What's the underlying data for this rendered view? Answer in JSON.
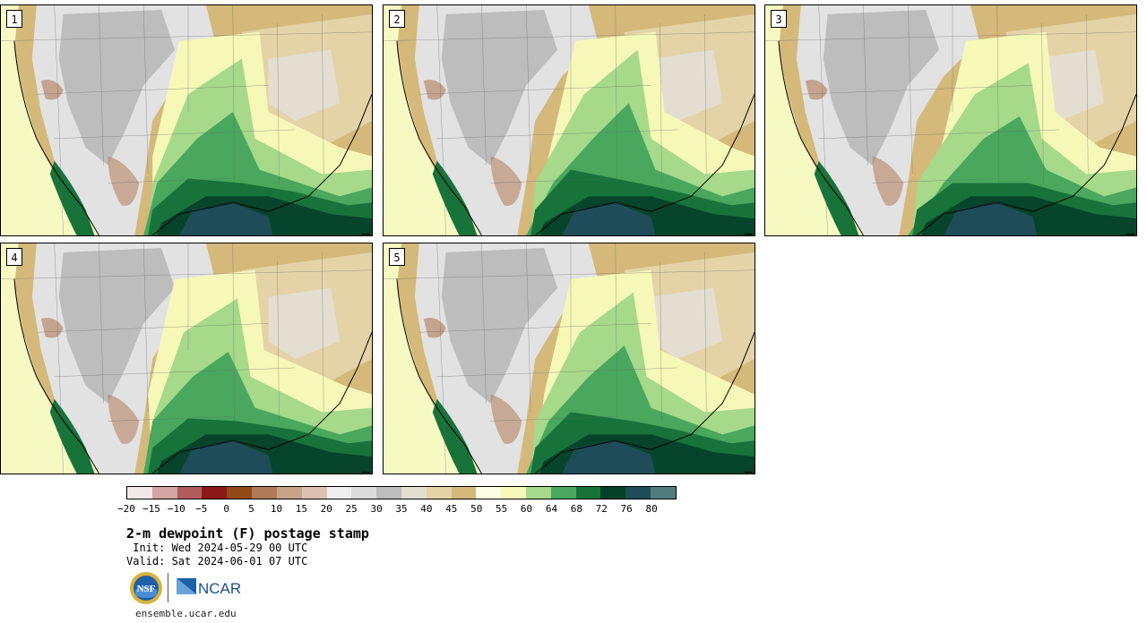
{
  "panels": [
    {
      "label": "1"
    },
    {
      "label": "2"
    },
    {
      "label": "3"
    },
    {
      "label": "4"
    },
    {
      "label": "5"
    }
  ],
  "colorbar": {
    "colors": [
      "#f2e8e8",
      "#d4a3a3",
      "#b15c5c",
      "#8c1919",
      "#8f4a16",
      "#b07a58",
      "#c8a489",
      "#dcc1b3",
      "#eeeeee",
      "#dcdcdc",
      "#bdbdbd",
      "#e2dfcf",
      "#e4d3a6",
      "#d4b97a",
      "#fffce5",
      "#f6f8b8",
      "#a6d98a",
      "#49a75e",
      "#177339",
      "#05412a",
      "#1f4e5a",
      "#527d7d"
    ],
    "tick_labels": [
      "−20",
      "−15",
      "−10",
      "−5",
      "0",
      "5",
      "10",
      "15",
      "20",
      "25",
      "30",
      "35",
      "40",
      "45",
      "50",
      "55",
      "60",
      "64",
      "68",
      "72",
      "76",
      "80"
    ]
  },
  "title": "2-m dewpoint (F) postage stamp",
  "init": " Init: Wed 2024-05-29 00 UTC",
  "valid": "Valid: Sat 2024-06-01 07 UTC",
  "logos": {
    "nsf": "NSF",
    "ncar": "NCAR"
  },
  "site": "ensemble.ucar.edu",
  "map_colors": {
    "ocean_pacific": "#f7f9c3",
    "gulf_deep": "#1e4c58",
    "green_dark": "#06442b",
    "green_mid": "#177339",
    "green": "#49a75e",
    "green_light": "#a6d98a",
    "yellow_light": "#f6f8b8",
    "tan": "#d4b97a",
    "tan_light": "#e4d3a6",
    "grey": "#bdbdbd",
    "grey_light": "#e2e2e2",
    "brown": "#b07a58"
  }
}
